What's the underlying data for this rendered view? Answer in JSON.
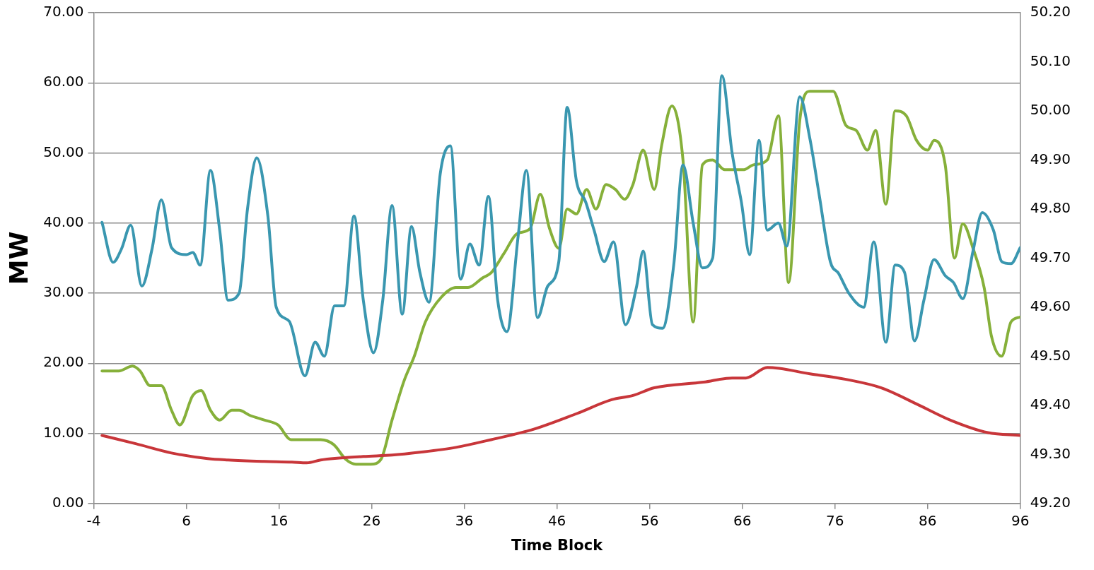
{
  "chart_data": {
    "type": "line",
    "xlabel": "Time Block",
    "ylabel": "MW",
    "legend": false,
    "grid": "y",
    "marker": "none",
    "line_style": "solid",
    "xlim": [
      -4,
      96
    ],
    "xticks": [
      -4,
      6,
      16,
      26,
      36,
      46,
      56,
      66,
      76,
      86,
      96
    ],
    "ylim": [
      0,
      70
    ],
    "yticks": [
      {
        "value": 0,
        "label": "0.00"
      },
      {
        "value": 10,
        "label": "10.00"
      },
      {
        "value": 20,
        "label": "20.00"
      },
      {
        "value": 30,
        "label": "30.00"
      },
      {
        "value": 40,
        "label": "40.00"
      },
      {
        "value": 50,
        "label": "50.00"
      },
      {
        "value": 60,
        "label": "60.00"
      },
      {
        "value": 70,
        "label": "70.00"
      }
    ],
    "y2lim": [
      49.2,
      50.2
    ],
    "y2ticks": [
      {
        "value": 49.2,
        "label": "49.20"
      },
      {
        "value": 49.3,
        "label": "49.30"
      },
      {
        "value": 49.4,
        "label": "49.40"
      },
      {
        "value": 49.5,
        "label": "49.50"
      },
      {
        "value": 49.6,
        "label": "49.60"
      },
      {
        "value": 49.7,
        "label": "49.70"
      },
      {
        "value": 49.8,
        "label": "49.80"
      },
      {
        "value": 49.9,
        "label": "49.90"
      },
      {
        "value": 50.0,
        "label": "50.00"
      },
      {
        "value": 50.1,
        "label": "50.10"
      },
      {
        "value": 50.2,
        "label": "50.20"
      }
    ],
    "series": [
      {
        "color": "#c8363a",
        "x": [
          -3.1,
          0.6,
          4.4,
          8.3,
          10.5,
          14.4,
          17.4,
          19.0,
          20.5,
          25.1,
          28.2,
          31.2,
          35.1,
          38.9,
          43.5,
          48.1,
          51.9,
          54.2,
          56.5,
          61.8,
          64.9,
          66.4,
          68.7,
          73.3,
          77.2,
          81.0,
          84.8,
          88.6,
          92.5,
          96.0
        ],
        "values": [
          9.7,
          8.5,
          7.2,
          6.4,
          6.2,
          6.0,
          5.9,
          5.8,
          6.2,
          6.7,
          6.9,
          7.3,
          8.0,
          9.1,
          10.6,
          12.8,
          14.8,
          15.4,
          16.5,
          17.3,
          17.9,
          17.9,
          19.4,
          18.5,
          17.7,
          16.5,
          14.2,
          11.8,
          10.1,
          9.7
        ]
      },
      {
        "color": "#3a97b0",
        "x": [
          -3.1,
          -1.9,
          -1.0,
          0.0,
          1.2,
          2.3,
          3.3,
          4.4,
          6.0,
          6.7,
          7.5,
          8.6,
          9.6,
          10.5,
          11.7,
          12.6,
          13.6,
          14.8,
          15.7,
          17.1,
          18.8,
          19.9,
          20.9,
          22.0,
          23.0,
          24.1,
          25.1,
          26.2,
          27.2,
          28.2,
          29.3,
          30.3,
          31.2,
          32.2,
          33.4,
          34.5,
          35.6,
          36.6,
          37.6,
          38.6,
          39.6,
          40.6,
          41.8,
          42.7,
          43.9,
          45.0,
          46.2,
          47.1,
          48.1,
          49.1,
          50.0,
          51.1,
          52.1,
          53.4,
          54.6,
          55.3,
          56.3,
          57.4,
          58.6,
          59.6,
          60.7,
          61.7,
          62.8,
          63.8,
          64.9,
          65.9,
          66.8,
          67.8,
          68.7,
          69.9,
          70.8,
          72.2,
          73.3,
          74.3,
          75.5,
          76.4,
          77.5,
          79.1,
          80.2,
          81.5,
          82.5,
          83.5,
          84.6,
          85.6,
          86.7,
          87.9,
          88.8,
          89.8,
          90.9,
          91.9,
          93.1,
          94.0,
          95.0,
          96.0
        ],
        "values": [
          40.1,
          34.4,
          36.3,
          39.7,
          31.0,
          36.3,
          43.3,
          36.5,
          35.5,
          35.8,
          34.0,
          47.5,
          39.0,
          29.0,
          30.0,
          42.0,
          49.3,
          41.0,
          28.0,
          26.0,
          18.2,
          23.0,
          21.0,
          28.2,
          28.2,
          41.0,
          29.0,
          21.5,
          29.0,
          42.5,
          27.0,
          39.5,
          33.0,
          28.7,
          47.0,
          51.0,
          32.0,
          37.0,
          34.0,
          43.8,
          29.0,
          24.5,
          38.0,
          47.5,
          26.5,
          31.0,
          34.5,
          56.5,
          46.0,
          43.0,
          39.0,
          34.5,
          37.3,
          25.5,
          31.0,
          36.0,
          25.5,
          25.0,
          34.0,
          48.3,
          40.0,
          33.6,
          35.0,
          61.0,
          50.0,
          43.0,
          35.5,
          51.8,
          39.0,
          40.0,
          36.7,
          58.0,
          52.0,
          44.0,
          34.5,
          32.8,
          30.0,
          28.0,
          37.3,
          23.0,
          34.0,
          33.0,
          23.2,
          29.0,
          34.8,
          32.5,
          31.5,
          29.2,
          36.0,
          41.5,
          39.0,
          34.5,
          34.2,
          36.5
        ]
      },
      {
        "color": "#86b03a",
        "axis": "y2",
        "x": [
          -3.1,
          -1.3,
          0.2,
          1.0,
          2.1,
          3.3,
          4.4,
          5.3,
          6.7,
          7.6,
          8.6,
          9.6,
          10.9,
          11.7,
          12.8,
          14.4,
          15.9,
          17.3,
          19.0,
          20.5,
          21.9,
          23.2,
          24.3,
          25.9,
          27.0,
          28.2,
          29.5,
          30.6,
          31.8,
          33.5,
          35.1,
          36.4,
          38.0,
          38.9,
          40.3,
          41.7,
          43.1,
          44.2,
          45.2,
          46.2,
          47.1,
          48.1,
          49.2,
          50.2,
          51.3,
          52.3,
          53.3,
          54.2,
          55.3,
          56.5,
          57.3,
          58.4,
          59.6,
          60.7,
          61.7,
          62.8,
          64.1,
          66.1,
          67.2,
          68.7,
          69.9,
          71.0,
          72.2,
          73.3,
          74.5,
          75.8,
          77.2,
          78.3,
          79.5,
          80.4,
          81.5,
          82.5,
          83.7,
          84.8,
          86.0,
          86.7,
          87.9,
          88.9,
          89.8,
          90.9,
          92.1,
          92.9,
          94.0,
          95.0,
          96.0
        ],
        "values": [
          49.47,
          49.47,
          49.48,
          49.47,
          49.44,
          49.44,
          49.39,
          49.36,
          49.42,
          49.43,
          49.39,
          49.37,
          49.39,
          49.39,
          49.38,
          49.37,
          49.36,
          49.33,
          49.33,
          49.33,
          49.32,
          49.29,
          49.28,
          49.28,
          49.29,
          49.37,
          49.45,
          49.5,
          49.57,
          49.62,
          49.64,
          49.64,
          49.66,
          49.67,
          49.71,
          49.75,
          49.76,
          49.83,
          49.76,
          49.72,
          49.8,
          49.79,
          49.84,
          49.8,
          49.85,
          49.84,
          49.82,
          49.85,
          49.92,
          49.84,
          49.93,
          50.01,
          49.9,
          49.57,
          49.89,
          49.9,
          49.88,
          49.88,
          49.89,
          49.9,
          49.99,
          49.65,
          49.98,
          50.04,
          50.04,
          50.04,
          49.97,
          49.96,
          49.92,
          49.96,
          49.81,
          50.0,
          49.99,
          49.94,
          49.92,
          49.94,
          49.89,
          49.7,
          49.77,
          49.72,
          49.64,
          49.54,
          49.5,
          49.57,
          49.58
        ]
      }
    ]
  }
}
